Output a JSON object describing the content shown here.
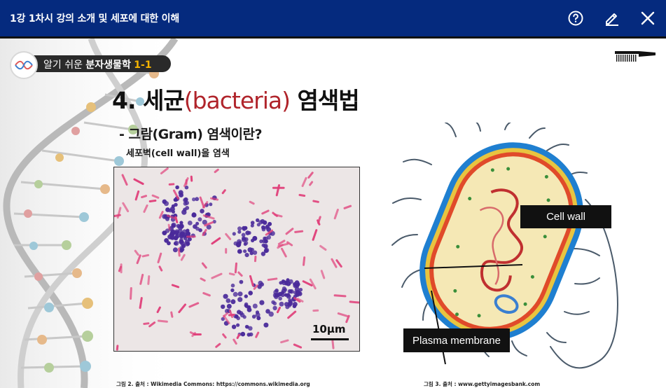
{
  "window": {
    "title": "1강 1차시 강의 소개 및 세포에 대한 이해",
    "help_icon": "help-circle-icon",
    "edit_icon": "pencil-icon",
    "close_icon": "close-icon"
  },
  "brand": {
    "prefix": "알기 쉬운 ",
    "name": "분자생물학",
    "number": "1-1",
    "accent_color": "#f5b400"
  },
  "slide": {
    "heading_prefix": "4. 세균",
    "heading_accent": "(bacteria)",
    "heading_suffix": " 염색법",
    "accent_color": "#b0242b",
    "subheading": "- 그람(Gram) 염색이란?",
    "description": "세포벽(cell wall)을 염색",
    "scale_label": "10μm",
    "label_cell_wall": "Cell wall",
    "label_plasma_membrane": "Plasma membrane",
    "caption_left": "그림 2. 출처 : Wikimedia Commons: https://commons.wikimedia.org",
    "caption_right": "그림 3. 출처 : www.gettyimagesbank.com"
  },
  "colors": {
    "topbar": "#052a7e",
    "gram_positive": "#4a2a9a",
    "gram_negative": "#e0407a"
  }
}
